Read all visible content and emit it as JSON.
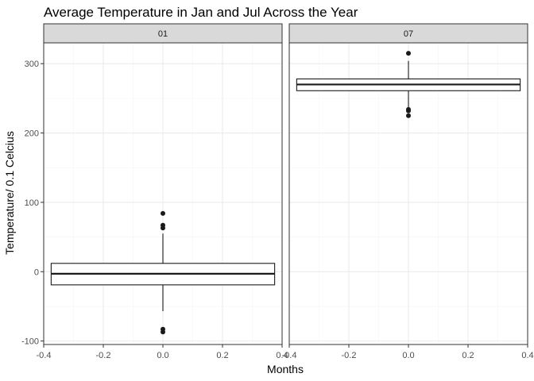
{
  "chart_data": {
    "type": "boxplot",
    "title": "Average Temperature in Jan and Jul Across the Year",
    "xlabel": "Months",
    "ylabel": "Temperature/ 0.1 Celcius",
    "xlim": [
      -0.4,
      0.4
    ],
    "ylim": [
      -105,
      330
    ],
    "x_ticks": [
      -0.4,
      -0.2,
      0.0,
      0.2,
      0.4
    ],
    "x_tick_labels": [
      "-0.4",
      "-0.2",
      "0.0",
      "0.2",
      "0.4"
    ],
    "y_ticks": [
      -100,
      0,
      100,
      200,
      300
    ],
    "y_tick_labels": [
      "-100",
      "0",
      "100",
      "200",
      "300"
    ],
    "grid": true,
    "box_halfwidth": 0.375,
    "facets": [
      {
        "label": "01",
        "box": {
          "q1": -19,
          "median": -3,
          "q3": 12,
          "whisker_low": -57,
          "whisker_high": 55
        },
        "outliers": [
          84,
          67,
          63,
          -83,
          -87
        ]
      },
      {
        "label": "07",
        "box": {
          "q1": 261,
          "median": 270,
          "q3": 278,
          "whisker_low": 237,
          "whisker_high": 304
        },
        "outliers": [
          315,
          234,
          232,
          225
        ]
      }
    ],
    "colors": {
      "panel_border": "#333333",
      "strip_fill": "#d9d9d9",
      "grid_major": "#ebebeb",
      "grid_minor": "#f5f5f5",
      "box_stroke": "#1a1a1a",
      "point": "#1a1a1a"
    }
  }
}
